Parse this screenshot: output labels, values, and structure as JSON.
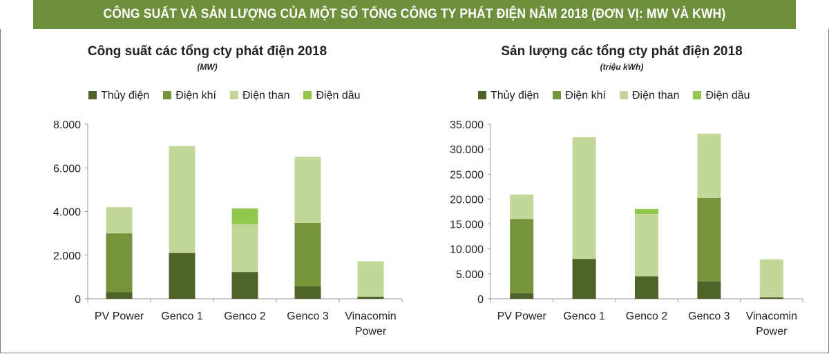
{
  "header": {
    "title": "CÔNG SUẤT VÀ SẢN LƯỢNG CỦA MỘT SỐ TỔNG CÔNG TY PHÁT ĐIỆN NĂM 2018 (ĐƠN VỊ: MW VÀ KWH)"
  },
  "colors": {
    "header_bg": "#6e8f3c",
    "Thủy điện": "#4e6229",
    "Điện khí": "#77933c",
    "Điện than": "#c4d79b",
    "Điện dầu": "#92c850"
  },
  "chart_data": [
    {
      "type": "bar",
      "stacked": true,
      "title": "Công suất các tổng cty phát điện 2018",
      "subtitle": "(MW)",
      "legend_position": "top",
      "categories": [
        "PV Power",
        "Genco 1",
        "Genco 2",
        "Genco 3",
        "Vinacomin Power"
      ],
      "ylim": [
        0,
        8000
      ],
      "yticks": [
        0,
        2000,
        4000,
        6000,
        8000
      ],
      "ytick_labels": [
        "0",
        "2.000",
        "4.000",
        "6.000",
        "8.000"
      ],
      "grid": false,
      "series": [
        {
          "name": "Thủy điện",
          "values": [
            300,
            2100,
            1230,
            570,
            100
          ]
        },
        {
          "name": "Điện khí",
          "values": [
            2700,
            0,
            0,
            2910,
            0
          ]
        },
        {
          "name": "Điện than",
          "values": [
            1200,
            4900,
            2190,
            3030,
            1620
          ]
        },
        {
          "name": "Điện dầu",
          "values": [
            0,
            0,
            720,
            0,
            0
          ]
        }
      ]
    },
    {
      "type": "bar",
      "stacked": true,
      "title": "Sản lượng các tổng cty phát điện 2018",
      "subtitle": "(triệu kWh)",
      "legend_position": "top",
      "categories": [
        "PV Power",
        "Genco 1",
        "Genco 2",
        "Genco 3",
        "Vinacomin Power"
      ],
      "ylim": [
        0,
        35000
      ],
      "yticks": [
        0,
        5000,
        10000,
        15000,
        20000,
        25000,
        30000,
        35000
      ],
      "ytick_labels": [
        "0",
        "5.000",
        "10.000",
        "15.000",
        "20.000",
        "25.000",
        "30.000",
        "35.000"
      ],
      "grid": false,
      "series": [
        {
          "name": "Thủy điện",
          "values": [
            1100,
            8000,
            4500,
            3500,
            300
          ]
        },
        {
          "name": "Điện khí",
          "values": [
            14900,
            0,
            0,
            16700,
            0
          ]
        },
        {
          "name": "Điện than",
          "values": [
            4900,
            24400,
            12500,
            12900,
            7600
          ]
        },
        {
          "name": "Điện dầu",
          "values": [
            0,
            0,
            1000,
            0,
            0
          ]
        }
      ]
    }
  ]
}
